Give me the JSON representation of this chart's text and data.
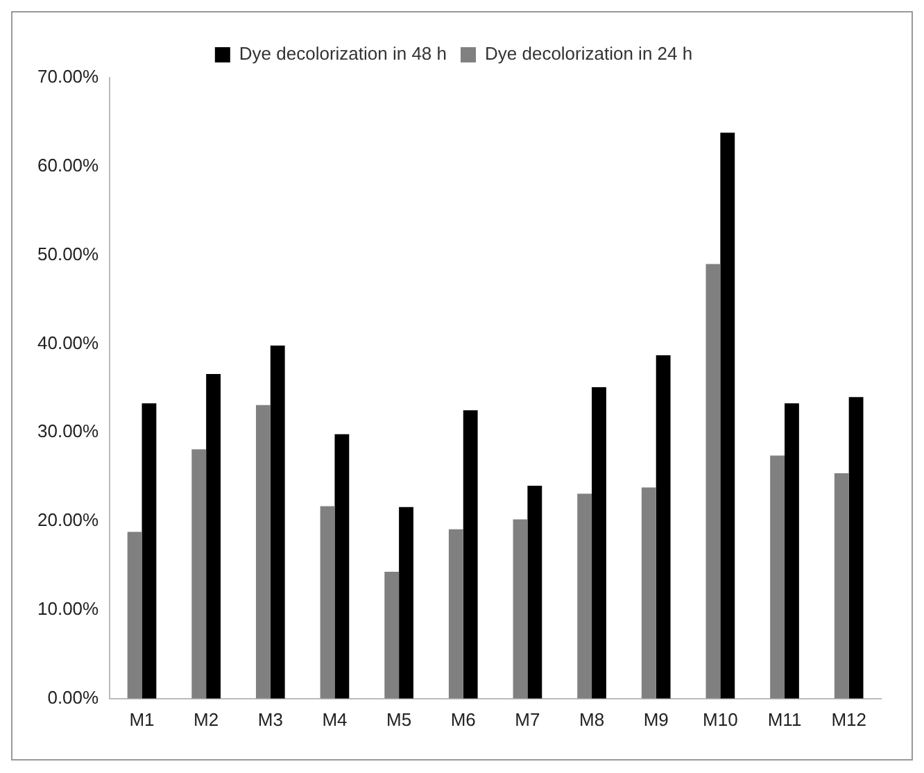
{
  "chart_data": {
    "type": "bar",
    "categories": [
      "M1",
      "M2",
      "M3",
      "M4",
      "M5",
      "M6",
      "M7",
      "M8",
      "M9",
      "M10",
      "M11",
      "M12"
    ],
    "series": [
      {
        "name": "Dye decolorization in 24 h",
        "color": "#808080",
        "values": [
          18.8,
          28.1,
          33.1,
          21.7,
          14.3,
          19.1,
          20.2,
          23.1,
          23.8,
          49.0,
          27.4,
          25.4
        ]
      },
      {
        "name": "Dye decolorization in 48 h",
        "color": "#000000",
        "values": [
          33.3,
          36.6,
          39.8,
          29.8,
          21.6,
          32.5,
          24.0,
          35.1,
          38.7,
          63.8,
          33.3,
          34.0
        ]
      }
    ],
    "ylim": [
      0,
      70
    ],
    "yticks": [
      {
        "value": 0,
        "label": "0.00%"
      },
      {
        "value": 10,
        "label": "10.00%"
      },
      {
        "value": 20,
        "label": "20.00%"
      },
      {
        "value": 30,
        "label": "30.00%"
      },
      {
        "value": 40,
        "label": "40.00%"
      },
      {
        "value": 50,
        "label": "50.00%"
      },
      {
        "value": 60,
        "label": "60.00%"
      },
      {
        "value": 70,
        "label": "70.00%"
      }
    ],
    "grid": false,
    "legend": "top"
  }
}
